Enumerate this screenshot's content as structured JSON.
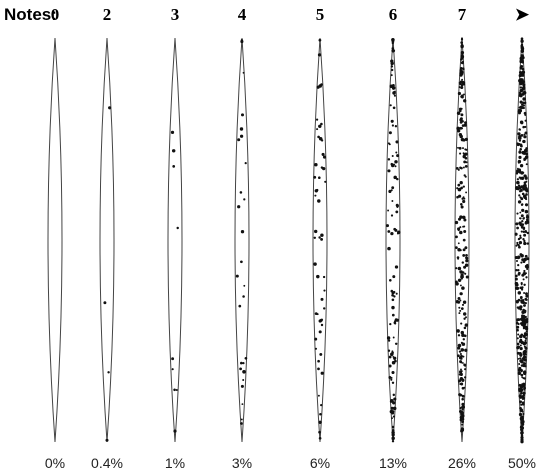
{
  "chart_data": {
    "type": "spindle",
    "title": "Notes:",
    "categories": [
      "0",
      "2",
      "3",
      "4",
      "5",
      "6",
      "7",
      "➤"
    ],
    "values": [
      0,
      0.4,
      1,
      3,
      6,
      13,
      26,
      50
    ],
    "value_labels": [
      "0%",
      "0.4%",
      "1%",
      "3%",
      "6%",
      "13%",
      "26%",
      "50%"
    ],
    "color": "#111111"
  }
}
